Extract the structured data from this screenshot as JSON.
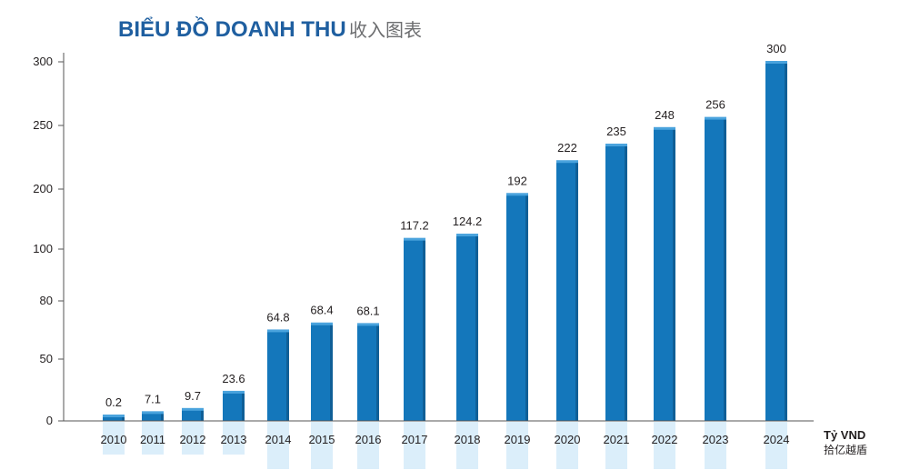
{
  "chart_data": {
    "type": "bar",
    "title": "BIỂU ĐỒ DOANH THU",
    "subtitle": "收入图表",
    "unit_label": "Tỷ VND",
    "unit_label_secondary": "拾亿越盾",
    "categories": [
      "2010",
      "2011",
      "2012",
      "2013",
      "2014",
      "2015",
      "2016",
      "2017",
      "2018",
      "2019",
      "2020",
      "2021",
      "2022",
      "2023",
      "2024"
    ],
    "values": [
      0.2,
      7.1,
      9.7,
      23.6,
      64.8,
      68.4,
      68.1,
      117.2,
      124.2,
      192,
      222,
      235,
      248,
      256,
      300
    ],
    "value_labels": [
      "0.2",
      "7.1",
      "9.7",
      "23.6",
      "64.8",
      "68.4",
      "68.1",
      "117.2",
      "124.2",
      "192",
      "222",
      "235",
      "248",
      "256",
      "300"
    ],
    "y_ticks": [
      "0",
      "50",
      "80",
      "100",
      "200",
      "250",
      "300"
    ],
    "grid": false,
    "colors": {
      "bar": "#1477bb",
      "bar_top": "#4aa3dd",
      "bar_side": "#0f5f97",
      "reflection": "#cfe8f8",
      "title": "#1f5fa0",
      "subtitle": "#6d6e70",
      "axis": "#555555",
      "text": "#231f20"
    }
  }
}
